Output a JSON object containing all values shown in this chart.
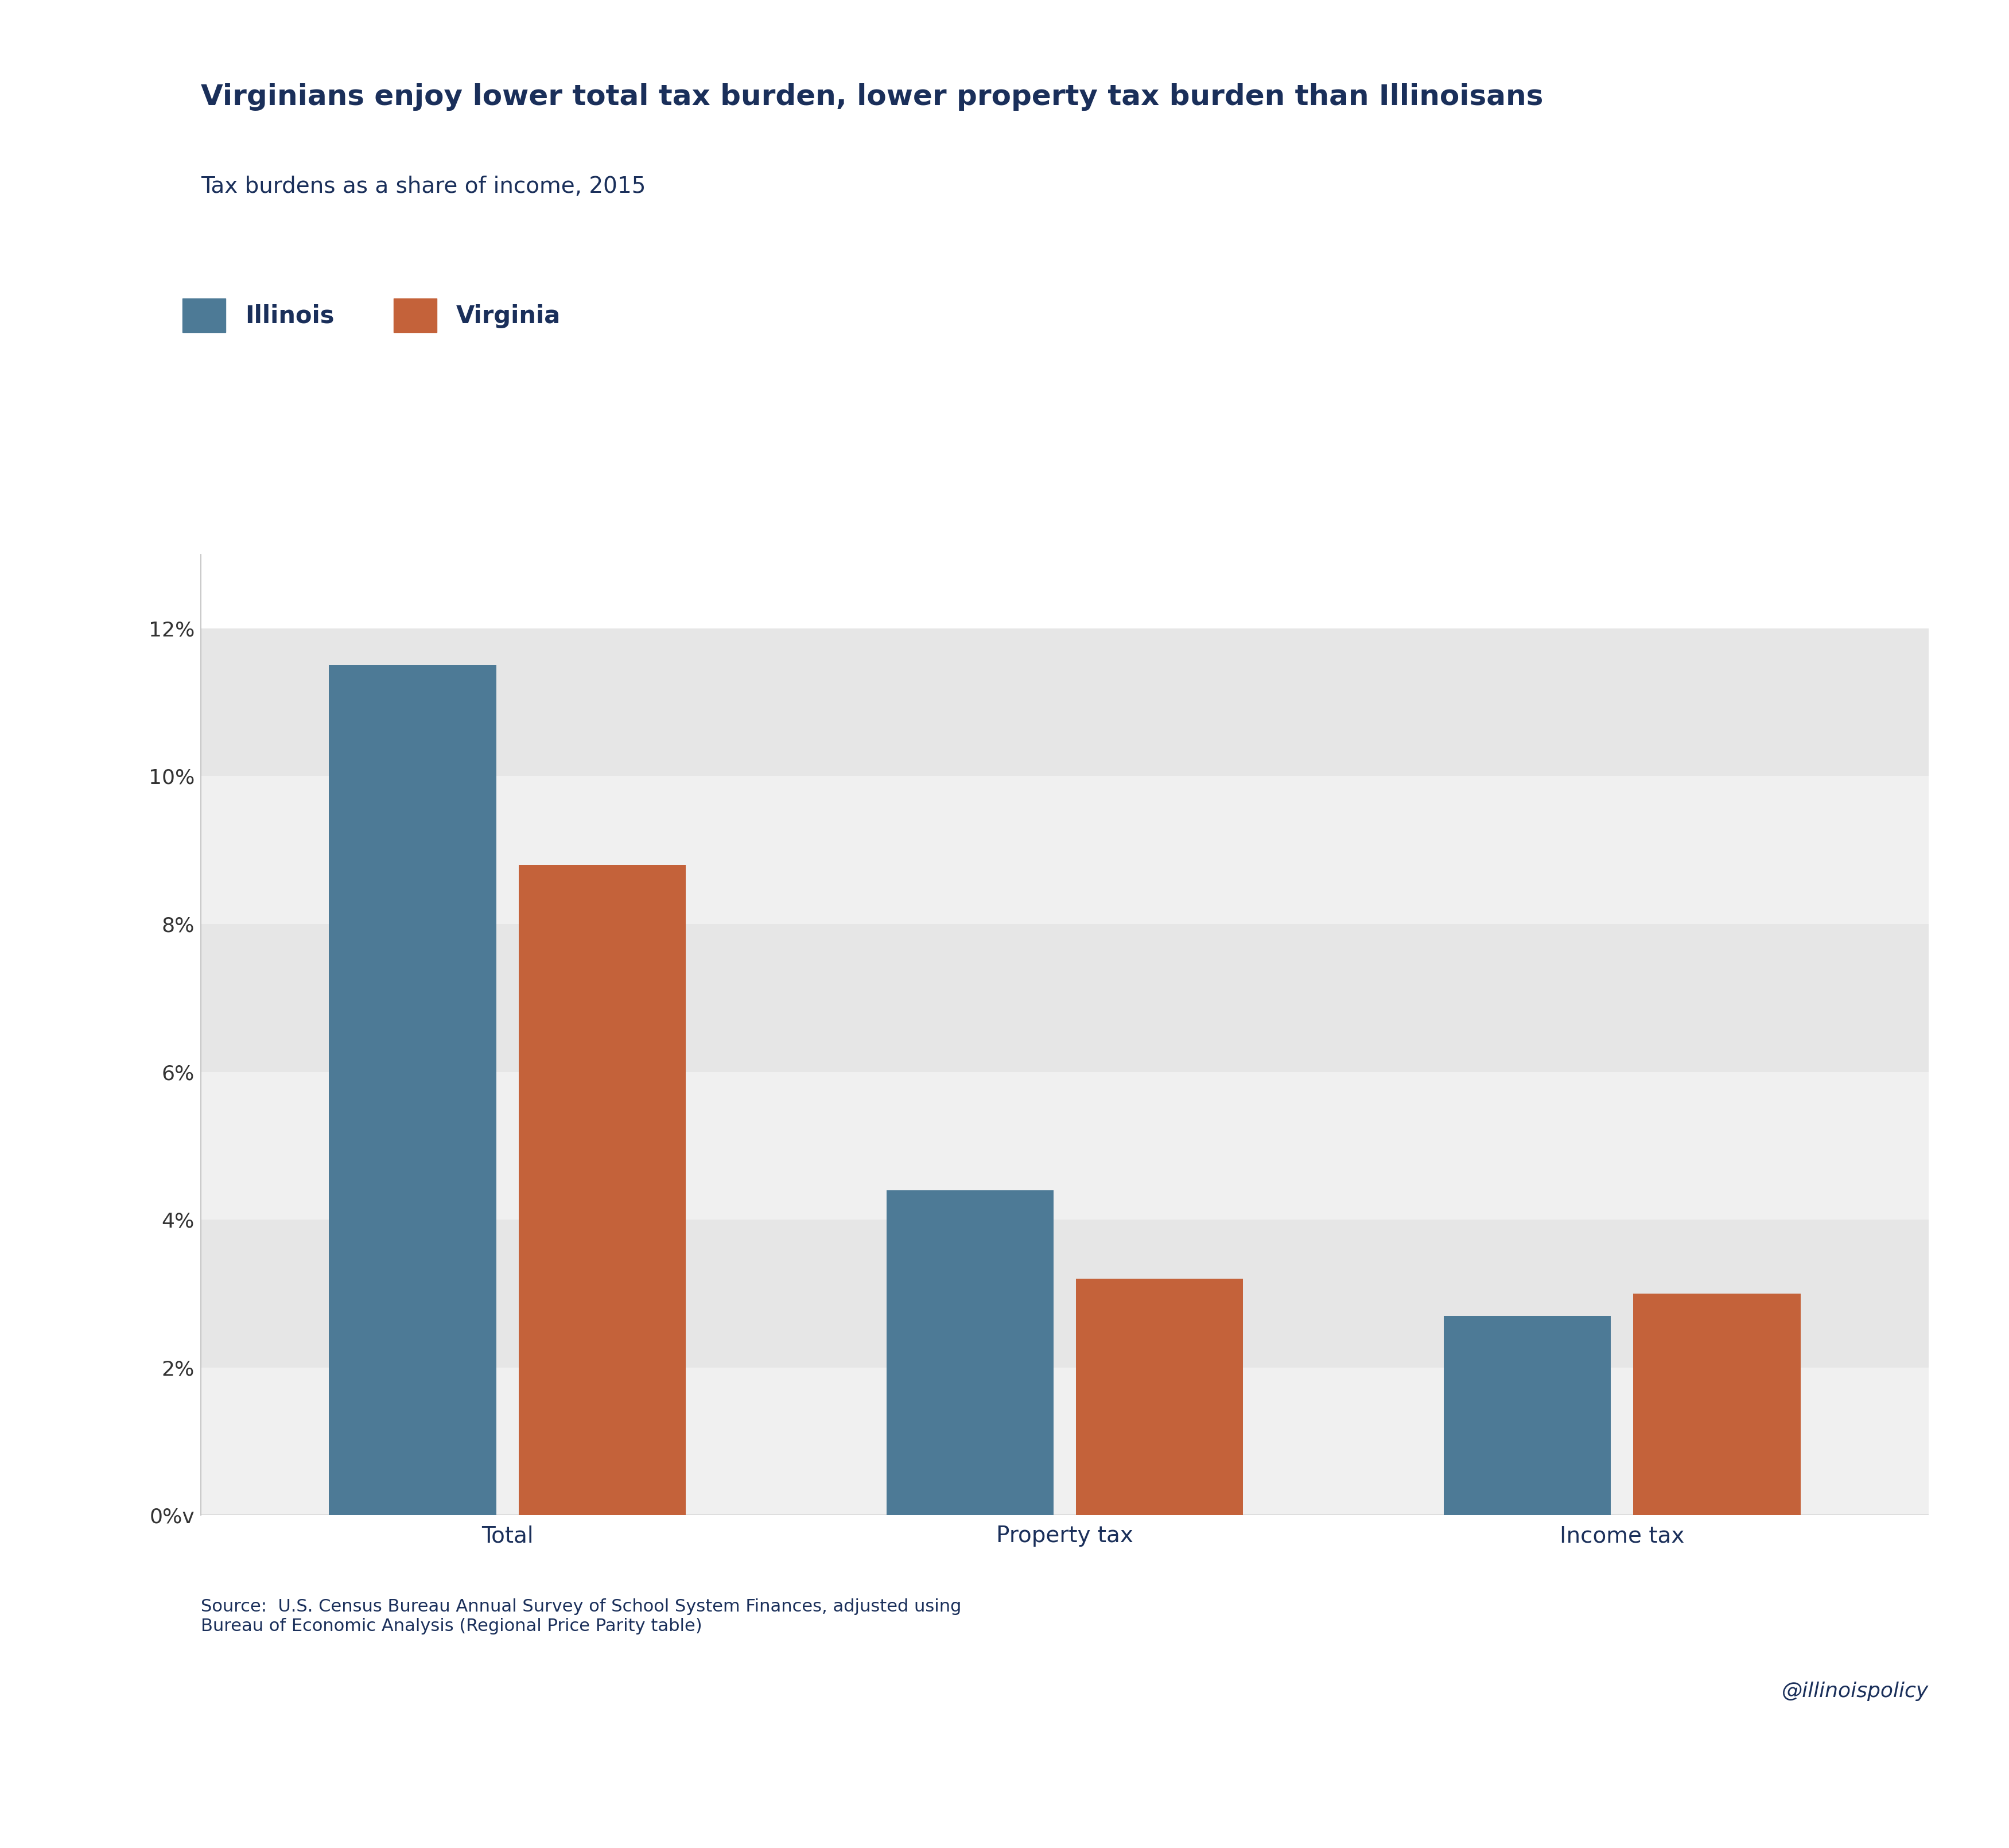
{
  "title": "Virginians enjoy lower total tax burden, lower property tax burden than Illinoisans",
  "subtitle": "Tax burdens as a share of income, 2015",
  "categories": [
    "Total",
    "Property tax",
    "Income tax"
  ],
  "illinois_values": [
    0.115,
    0.044,
    0.027
  ],
  "virginia_values": [
    0.088,
    0.032,
    0.03
  ],
  "illinois_color": "#4d7a96",
  "virginia_color": "#c4623a",
  "title_color": "#1a2f5a",
  "subtitle_color": "#1a2f5a",
  "axis_label_color": "#1a2f5a",
  "tick_color": "#333333",
  "background_color": "#ffffff",
  "stripe_dark": "#e6e6e6",
  "stripe_light": "#f0f0f0",
  "legend_labels": [
    "Illinois",
    "Virginia"
  ],
  "ylim": [
    0,
    0.13
  ],
  "yticks": [
    0,
    0.02,
    0.04,
    0.06,
    0.08,
    0.1,
    0.12
  ],
  "ytick_labels": [
    "0%v",
    "2%",
    "4%",
    "6%",
    "8%",
    "10%",
    "12%"
  ],
  "source_text": "Source:  U.S. Census Bureau Annual Survey of School System Finances, adjusted using\nBureau of Economic Analysis (Regional Price Parity table)",
  "watermark": "@illinoispolicy",
  "bar_width": 0.3,
  "title_fontsize": 36,
  "subtitle_fontsize": 28,
  "legend_fontsize": 30,
  "tick_fontsize": 26,
  "xtick_fontsize": 28,
  "source_fontsize": 22,
  "watermark_fontsize": 26
}
